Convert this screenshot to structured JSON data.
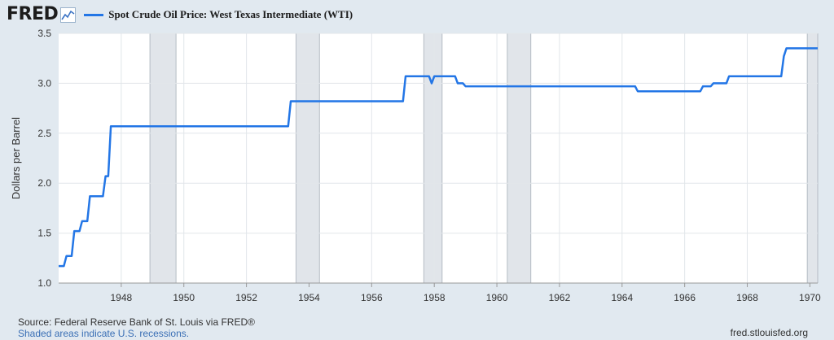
{
  "header": {
    "logo_text": "FRED",
    "logo_icon": "trend-line-icon"
  },
  "legend": {
    "label": "Spot Crude Oil Price: West Texas Intermediate (WTI)",
    "color": "#2376e6"
  },
  "footer": {
    "source": "Source: Federal Reserve Bank of St. Louis via FRED®",
    "note": "Shaded areas indicate U.S. recessions.",
    "site": "fred.stlouisfed.org"
  },
  "chart_data": {
    "type": "line",
    "title": "",
    "xlabel": "",
    "ylabel": "Dollars per Barrel",
    "xlim": [
      "1946-01",
      "1970-04"
    ],
    "ylim": [
      1.0,
      3.5
    ],
    "x_ticks": [
      "1948",
      "1950",
      "1952",
      "1954",
      "1956",
      "1958",
      "1960",
      "1962",
      "1964",
      "1966",
      "1968",
      "1970"
    ],
    "y_ticks": [
      "1.0",
      "1.5",
      "2.0",
      "2.5",
      "3.0",
      "3.5"
    ],
    "grid": true,
    "recessions": [
      [
        "1948-12",
        "1949-10"
      ],
      [
        "1953-08",
        "1954-05"
      ],
      [
        "1957-09",
        "1958-04"
      ],
      [
        "1960-05",
        "1961-02"
      ],
      [
        "1969-12",
        "1970-04"
      ]
    ],
    "series": [
      {
        "name": "Spot Crude Oil Price: West Texas Intermediate (WTI)",
        "color": "#2376e6",
        "points": [
          [
            "1946-01",
            1.17
          ],
          [
            "1946-03",
            1.17
          ],
          [
            "1946-04",
            1.27
          ],
          [
            "1946-06",
            1.27
          ],
          [
            "1946-07",
            1.52
          ],
          [
            "1946-09",
            1.52
          ],
          [
            "1946-10",
            1.62
          ],
          [
            "1946-12",
            1.62
          ],
          [
            "1947-01",
            1.87
          ],
          [
            "1947-06",
            1.87
          ],
          [
            "1947-07",
            2.07
          ],
          [
            "1947-08",
            2.07
          ],
          [
            "1947-09",
            2.57
          ],
          [
            "1953-05",
            2.57
          ],
          [
            "1953-06",
            2.82
          ],
          [
            "1957-01",
            2.82
          ],
          [
            "1957-02",
            3.07
          ],
          [
            "1957-11",
            3.07
          ],
          [
            "1957-12",
            3.0
          ],
          [
            "1958-01",
            3.07
          ],
          [
            "1958-09",
            3.07
          ],
          [
            "1958-10",
            3.0
          ],
          [
            "1958-12",
            3.0
          ],
          [
            "1959-01",
            2.97
          ],
          [
            "1964-06",
            2.97
          ],
          [
            "1964-07",
            2.92
          ],
          [
            "1966-07",
            2.92
          ],
          [
            "1966-08",
            2.97
          ],
          [
            "1966-11",
            2.97
          ],
          [
            "1966-12",
            3.0
          ],
          [
            "1967-05",
            3.0
          ],
          [
            "1967-06",
            3.07
          ],
          [
            "1969-02",
            3.07
          ],
          [
            "1969-03",
            3.27
          ],
          [
            "1969-04",
            3.35
          ],
          [
            "1970-04",
            3.35
          ]
        ]
      }
    ]
  }
}
